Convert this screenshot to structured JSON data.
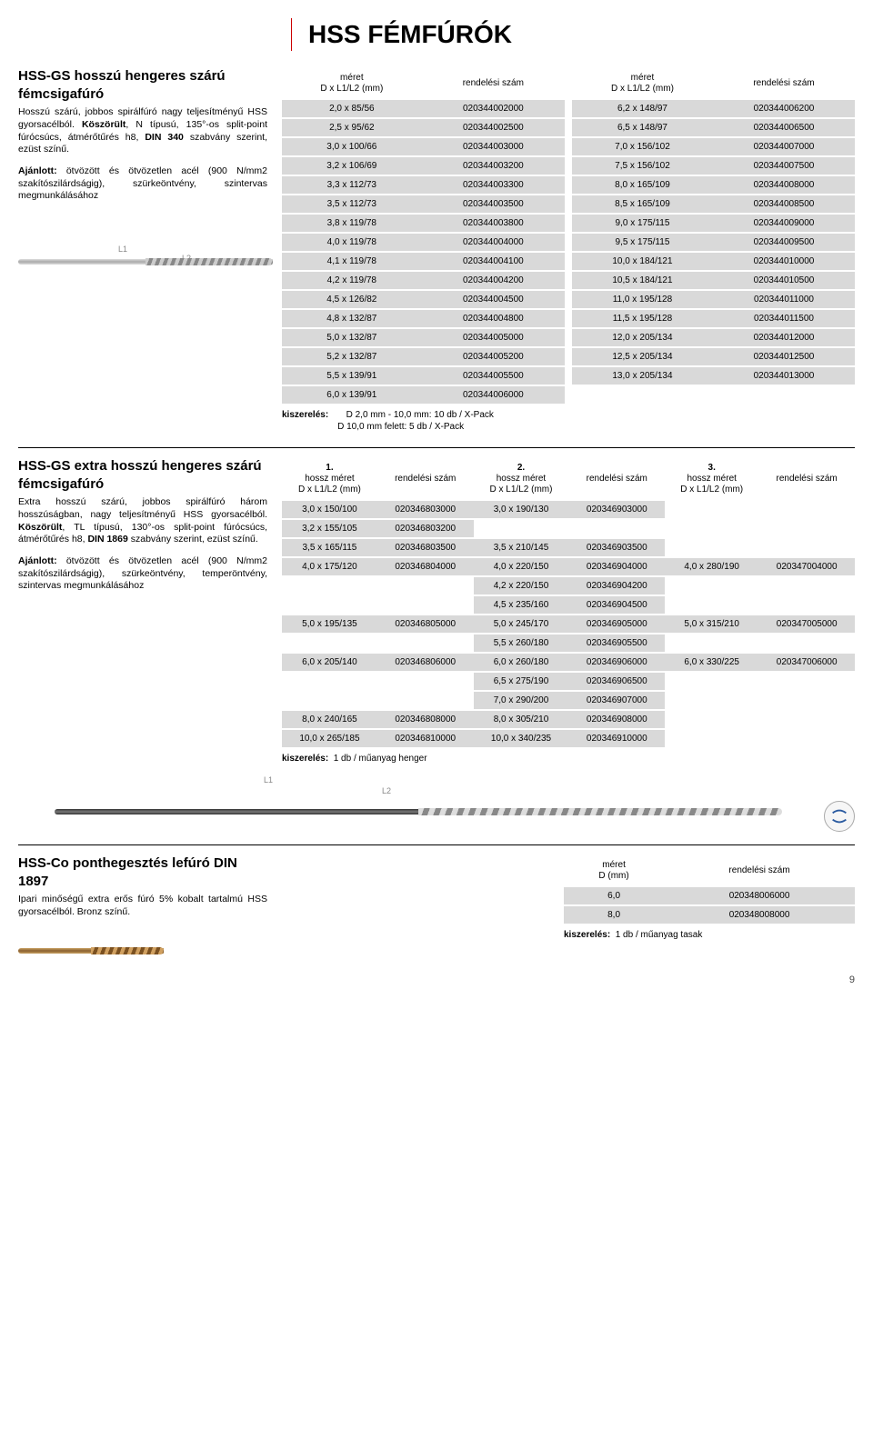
{
  "page": {
    "title": "HSS FÉMFÚRÓK",
    "number": "9"
  },
  "section1": {
    "title": "HSS-GS hosszú hengeres szárú fémcsigafúró",
    "desc_html": "Hosszú szárú, jobbos spirálfúró nagy teljesítményű HSS gyorsacélból. <b>Köszörült</b>, N típusú, 135°-os split-point fúrócsúcs, átmérőtűrés h8, <b>DIN 340</b> szabvány szerint, ezüst színű.",
    "ajanlott_html": "<b>Ajánlott:</b> ötvözött és ötvözetlen acél (900 N/mm2 szakítószilárdságig), szürkeöntvény, szintervas megmunkálásához",
    "l1": "L1",
    "l2": "L2",
    "header_size": "méret\nD x L1/L2 (mm)",
    "header_code": "rendelési szám",
    "tableA": [
      [
        "2,0 x 85/56",
        "020344002000"
      ],
      [
        "2,5 x 95/62",
        "020344002500"
      ],
      [
        "3,0 x 100/66",
        "020344003000"
      ],
      [
        "3,2 x 106/69",
        "020344003200"
      ],
      [
        "3,3 x 112/73",
        "020344003300"
      ],
      [
        "3,5 x 112/73",
        "020344003500"
      ],
      [
        "3,8 x 119/78",
        "020344003800"
      ],
      [
        "4,0 x 119/78",
        "020344004000"
      ],
      [
        "4,1 x 119/78",
        "020344004100"
      ],
      [
        "4,2 x 119/78",
        "020344004200"
      ],
      [
        "4,5 x 126/82",
        "020344004500"
      ],
      [
        "4,8 x 132/87",
        "020344004800"
      ],
      [
        "5,0 x 132/87",
        "020344005000"
      ],
      [
        "5,2 x 132/87",
        "020344005200"
      ],
      [
        "5,5 x 139/91",
        "020344005500"
      ],
      [
        "6,0 x 139/91",
        "020344006000"
      ]
    ],
    "tableB": [
      [
        "6,2 x 148/97",
        "020344006200"
      ],
      [
        "6,5 x 148/97",
        "020344006500"
      ],
      [
        "7,0 x 156/102",
        "020344007000"
      ],
      [
        "7,5 x 156/102",
        "020344007500"
      ],
      [
        "8,0 x 165/109",
        "020344008000"
      ],
      [
        "8,5 x 165/109",
        "020344008500"
      ],
      [
        "9,0 x 175/115",
        "020344009000"
      ],
      [
        "9,5 x 175/115",
        "020344009500"
      ],
      [
        "10,0 x 184/121",
        "020344010000"
      ],
      [
        "10,5 x 184/121",
        "020344010500"
      ],
      [
        "11,0 x 195/128",
        "020344011000"
      ],
      [
        "11,5 x 195/128",
        "020344011500"
      ],
      [
        "12,0 x 205/134",
        "020344012000"
      ],
      [
        "12,5 x 205/134",
        "020344012500"
      ],
      [
        "13,0 x 205/134",
        "020344013000"
      ]
    ],
    "pack_label": "kiszerelés:",
    "pack1": "D 2,0 mm - 10,0 mm: 10 db / X-Pack",
    "pack2": "D 10,0 mm felett:    5 db / X-Pack"
  },
  "section2": {
    "title": "HSS-GS extra hosszú hengeres szárú fémcsigafúró",
    "desc_html": "Extra hosszú szárú, jobbos spirálfúró három hosszúságban, nagy teljesítményű HSS gyorsacélból. <b>Köszörült</b>, TL típusú, 130°-os split-point fúrócsúcs, átmérőtűrés h8, <b>DIN 1869</b> szabvány szerint, ezüst színű.",
    "ajanlott_html": "<b>Ajánlott:</b> ötvözött és ötvözetlen acél (900 N/mm2 szakítószilárdságig), szürkeöntvény, temperöntvény, szintervas megmunkálásához",
    "l1": "L1",
    "l2": "L2",
    "header_num": [
      "1.",
      "2.",
      "3."
    ],
    "header_size": "hossz méret\nD x L1/L2 (mm)",
    "header_code": "rendelési szám",
    "rows": [
      [
        [
          "3,0 x 150/100",
          "020346803000"
        ],
        [
          "3,0 x 190/130",
          "020346903000"
        ],
        [
          "",
          ""
        ]
      ],
      [
        [
          "3,2 x 155/105",
          "020346803200"
        ],
        [
          "",
          ""
        ],
        [
          "",
          ""
        ]
      ],
      [
        [
          "3,5 x 165/115",
          "020346803500"
        ],
        [
          "3,5 x 210/145",
          "020346903500"
        ],
        [
          "",
          ""
        ]
      ],
      [
        [
          "4,0 x 175/120",
          "020346804000"
        ],
        [
          "4,0 x 220/150",
          "020346904000"
        ],
        [
          "4,0 x 280/190",
          "020347004000"
        ]
      ],
      [
        [
          "",
          ""
        ],
        [
          "4,2 x 220/150",
          "020346904200"
        ],
        [
          "",
          ""
        ]
      ],
      [
        [
          "",
          ""
        ],
        [
          "4,5 x 235/160",
          "020346904500"
        ],
        [
          "",
          ""
        ]
      ],
      [
        [
          "5,0 x 195/135",
          "020346805000"
        ],
        [
          "5,0 x 245/170",
          "020346905000"
        ],
        [
          "5,0 x 315/210",
          "020347005000"
        ]
      ],
      [
        [
          "",
          ""
        ],
        [
          "5,5 x 260/180",
          "020346905500"
        ],
        [
          "",
          ""
        ]
      ],
      [
        [
          "6,0 x 205/140",
          "020346806000"
        ],
        [
          "6,0 x 260/180",
          "020346906000"
        ],
        [
          "6,0 x 330/225",
          "020347006000"
        ]
      ],
      [
        [
          "",
          ""
        ],
        [
          "6,5 x 275/190",
          "020346906500"
        ],
        [
          "",
          ""
        ]
      ],
      [
        [
          "",
          ""
        ],
        [
          "7,0 x 290/200",
          "020346907000"
        ],
        [
          "",
          ""
        ]
      ],
      [
        [
          "8,0 x 240/165",
          "020346808000"
        ],
        [
          "8,0 x 305/210",
          "020346908000"
        ],
        [
          "",
          ""
        ]
      ],
      [
        [
          "10,0 x 265/185",
          "020346810000"
        ],
        [
          "10,0 x 340/235",
          "020346910000"
        ],
        [
          "",
          ""
        ]
      ]
    ],
    "pack_label": "kiszerelés:",
    "pack": "1 db / műanyag henger"
  },
  "section3": {
    "title": "HSS-Co ponthegesztés lefúró DIN 1897",
    "desc": "Ipari minőségű extra erős fúró 5% kobalt tartalmú HSS gyorsacélból. Bronz színű.",
    "header_size": "méret\nD (mm)",
    "header_code": "rendelési szám",
    "rows": [
      [
        "6,0",
        "020348006000"
      ],
      [
        "8,0",
        "020348008000"
      ]
    ],
    "pack_label": "kiszerelés:",
    "pack": "1 db / műanyag tasak"
  }
}
